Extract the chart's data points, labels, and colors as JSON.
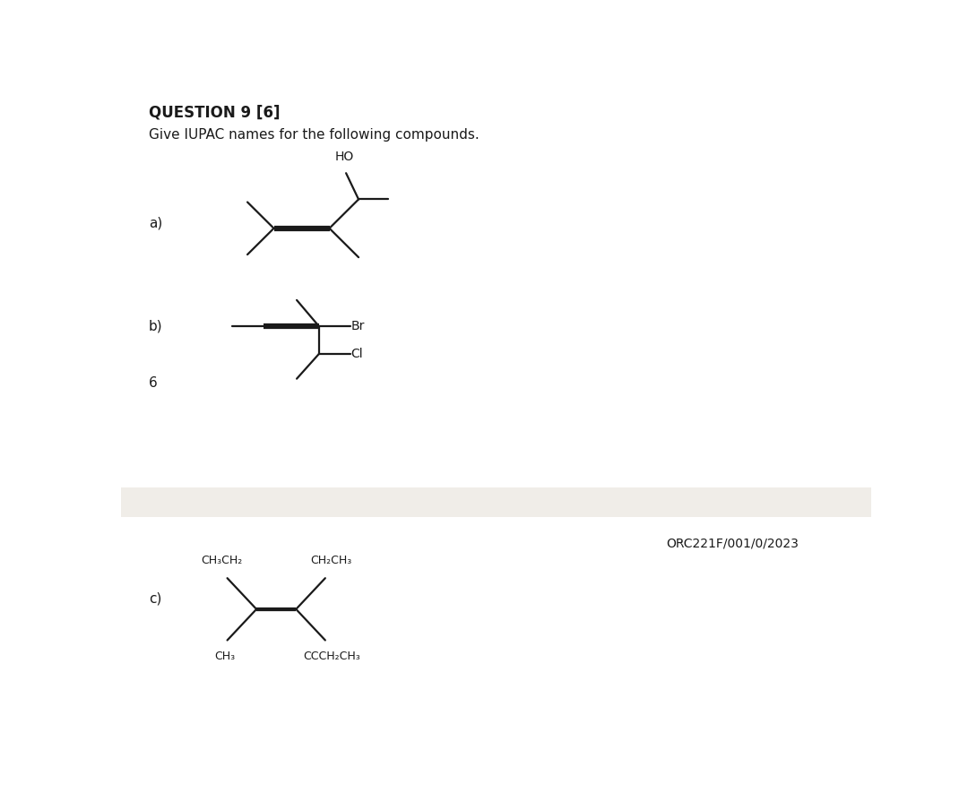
{
  "title": "QUESTION 9 [6]",
  "subtitle": "Give IUPAC names for the following compounds.",
  "bg_color": "#ffffff",
  "separator_color": "#f0ede8",
  "footer_text": "ORC221F/001/0/2023",
  "number_6": "6",
  "label_a": "a)",
  "label_b": "b)",
  "label_c": "c)",
  "line_color": "#1a1a1a",
  "text_color": "#1a1a1a",
  "fig_w": 10.8,
  "fig_h": 8.85
}
